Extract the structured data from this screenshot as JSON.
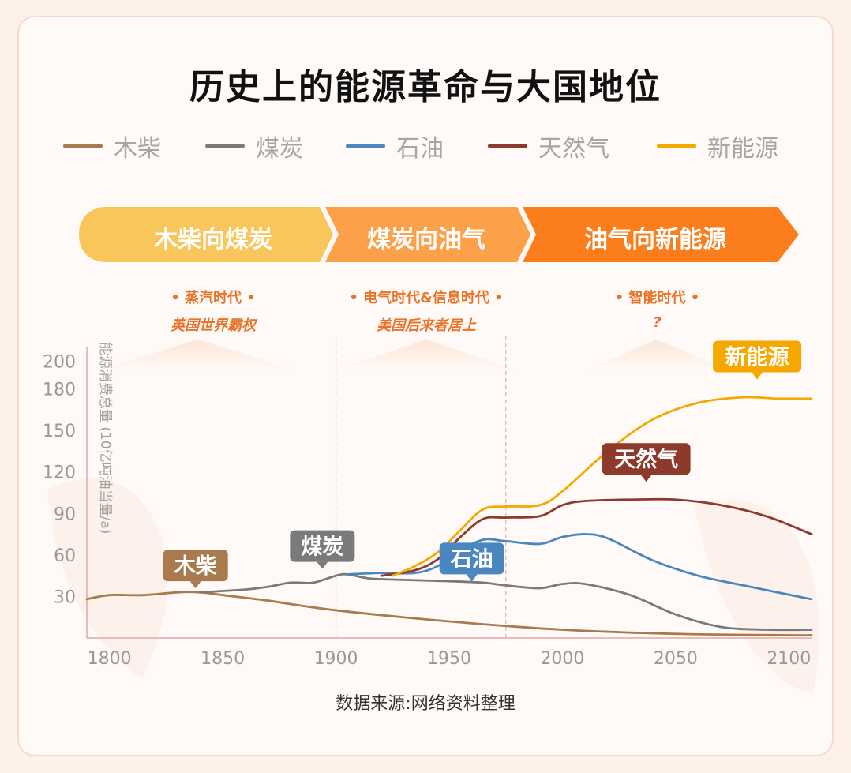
{
  "title": "历史上的能源革命与大国地位",
  "legend": [
    {
      "label": "木柴",
      "color": "#a87a4d"
    },
    {
      "label": "煤炭",
      "color": "#7a7a7a"
    },
    {
      "label": "石油",
      "color": "#4a86bf"
    },
    {
      "label": "天然气",
      "color": "#8d3a2c"
    },
    {
      "label": "新能源",
      "color": "#f5a800"
    }
  ],
  "eras": [
    {
      "label": "木柴向煤炭",
      "note": "• 蒸汽时代 •",
      "sub": "英国世界霸权"
    },
    {
      "label": "煤炭向油气",
      "note": "• 电气时代&信息时代 •",
      "sub": "美国后来者居上"
    },
    {
      "label": "油气向新能源",
      "note": "• 智能时代 •",
      "sub": "?"
    }
  ],
  "source": "数据来源:网络资料整理",
  "chart_data": {
    "type": "line",
    "xlabel": "",
    "ylabel": "能源消费总量 (10亿吨油当量/a)",
    "xlim": [
      1790,
      2110
    ],
    "ylim": [
      0,
      210
    ],
    "xticks": [
      1800,
      1850,
      1900,
      1950,
      2000,
      2050,
      2100
    ],
    "yticks": [
      30,
      60,
      90,
      120,
      150,
      180,
      200
    ],
    "dividers": [
      1900,
      1975
    ],
    "series": [
      {
        "name": "木柴",
        "color": "#a87a4d",
        "label_at": [
          1838,
          41
        ],
        "x": [
          1790,
          1800,
          1815,
          1830,
          1840,
          1850,
          1870,
          1900,
          1950,
          2000,
          2050,
          2100,
          2110
        ],
        "y": [
          28,
          31,
          31,
          33,
          33,
          31,
          27,
          20,
          12,
          6,
          3,
          2,
          2
        ]
      },
      {
        "name": "煤炭",
        "color": "#7a7a7a",
        "label_at": [
          1894,
          55
        ],
        "x": [
          1840,
          1860,
          1870,
          1880,
          1890,
          1900,
          1905,
          1915,
          1930,
          1950,
          1965,
          1975,
          1990,
          2000,
          2010,
          2030,
          2050,
          2070,
          2090,
          2110
        ],
        "y": [
          33,
          35,
          37,
          40,
          40,
          45,
          46,
          43,
          42,
          41,
          40,
          38,
          36,
          39,
          39,
          31,
          17,
          8,
          6,
          6
        ]
      },
      {
        "name": "石油",
        "color": "#4a86bf",
        "label_at": [
          1960,
          46
        ],
        "x": [
          1905,
          1920,
          1935,
          1945,
          1955,
          1965,
          1975,
          1990,
          2000,
          2010,
          2020,
          2040,
          2060,
          2080,
          2110
        ],
        "y": [
          46,
          47,
          47,
          52,
          63,
          71,
          70,
          68,
          73,
          75,
          72,
          56,
          45,
          38,
          28
        ]
      },
      {
        "name": "天然气",
        "color": "#8d3a2c",
        "label_at": [
          2037,
          118
        ],
        "x": [
          1920,
          1935,
          1945,
          1955,
          1965,
          1975,
          1990,
          2000,
          2010,
          2030,
          2050,
          2070,
          2090,
          2110
        ],
        "y": [
          45,
          49,
          57,
          73,
          86,
          87,
          88,
          96,
          99,
          100,
          100,
          96,
          88,
          75
        ]
      },
      {
        "name": "新能源",
        "color": "#f5a800",
        "label_at": [
          2086,
          192
        ],
        "x": [
          1925,
          1935,
          1945,
          1955,
          1965,
          1975,
          1990,
          2000,
          2020,
          2040,
          2060,
          2080,
          2095,
          2110
        ],
        "y": [
          45,
          52,
          62,
          78,
          93,
          95,
          96,
          106,
          135,
          158,
          170,
          174,
          173,
          173
        ]
      }
    ]
  }
}
